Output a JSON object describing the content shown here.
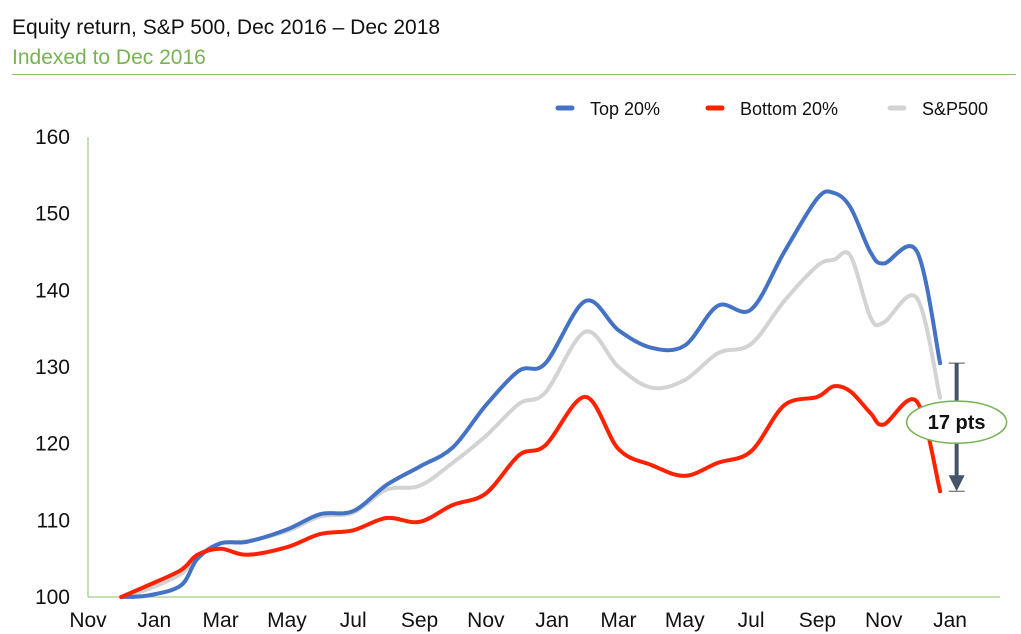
{
  "header": {
    "title": "Equity return, S&P 500, Dec 2016 – Dec 2018",
    "subtitle": "Indexed to Dec 2016"
  },
  "chart_data": {
    "type": "line",
    "title": "Equity return, S&P 500, Dec 2016 – Dec 2018",
    "subtitle": "Indexed to Dec 2016",
    "xlabel": "",
    "ylabel": "",
    "ylim": [
      100,
      160
    ],
    "yticks": [
      100,
      110,
      120,
      130,
      140,
      150,
      160
    ],
    "x_tick_labels": [
      "Nov",
      "Jan",
      "Mar",
      "May",
      "Jul",
      "Sep",
      "Nov",
      "Jan",
      "Mar",
      "May",
      "Jul",
      "Sep",
      "Nov",
      "Jan"
    ],
    "x_tick_positions": [
      -1,
      1,
      3,
      5,
      7,
      9,
      11,
      13,
      15,
      17,
      19,
      21,
      23,
      25
    ],
    "xlim": [
      -1,
      25
    ],
    "x": [
      0,
      0.8,
      1.8,
      2.3,
      3,
      3.8,
      5,
      6,
      7,
      8,
      9,
      10,
      11,
      12,
      12.8,
      14,
      15,
      16,
      17,
      18,
      19,
      20,
      21,
      21.5,
      22,
      22.6,
      23,
      24,
      24.7
    ],
    "legend_position": "top-right",
    "grid": false,
    "series": [
      {
        "name": "Top 20%",
        "color": "#4472c4",
        "values": [
          100,
          100.2,
          101.5,
          105,
          107,
          107.2,
          108.8,
          110.8,
          111.2,
          114.6,
          117,
          119.5,
          125,
          129.5,
          130.5,
          138.6,
          134.8,
          132.5,
          132.8,
          138,
          137.5,
          145,
          152,
          152.7,
          150.8,
          145,
          143.5,
          145.1,
          130.5
        ]
      },
      {
        "name": "Bottom 20%",
        "color": "#ff2200",
        "values": [
          100,
          101.5,
          103.5,
          105.5,
          106.3,
          105.5,
          106.5,
          108.2,
          108.7,
          110.3,
          109.8,
          112,
          113.5,
          118.5,
          119.8,
          126.1,
          119.3,
          117.2,
          115.8,
          117.5,
          119,
          125,
          126.1,
          127.5,
          126.8,
          124,
          122.5,
          125.5,
          113.8
        ]
      },
      {
        "name": "S&P500",
        "color": "#d3d3d3",
        "values": [
          100,
          101,
          103,
          105.3,
          107,
          107.3,
          108.6,
          110.5,
          111,
          114,
          114.5,
          117.5,
          121,
          125.2,
          126.7,
          134.6,
          130,
          127.3,
          128.3,
          131.8,
          133,
          138.6,
          143.2,
          144,
          144.5,
          136.5,
          135.8,
          139,
          126
        ]
      }
    ],
    "annotations": [
      {
        "text": "17 pts",
        "from": 130.5,
        "to": 113.8,
        "x": 25.2
      }
    ]
  }
}
